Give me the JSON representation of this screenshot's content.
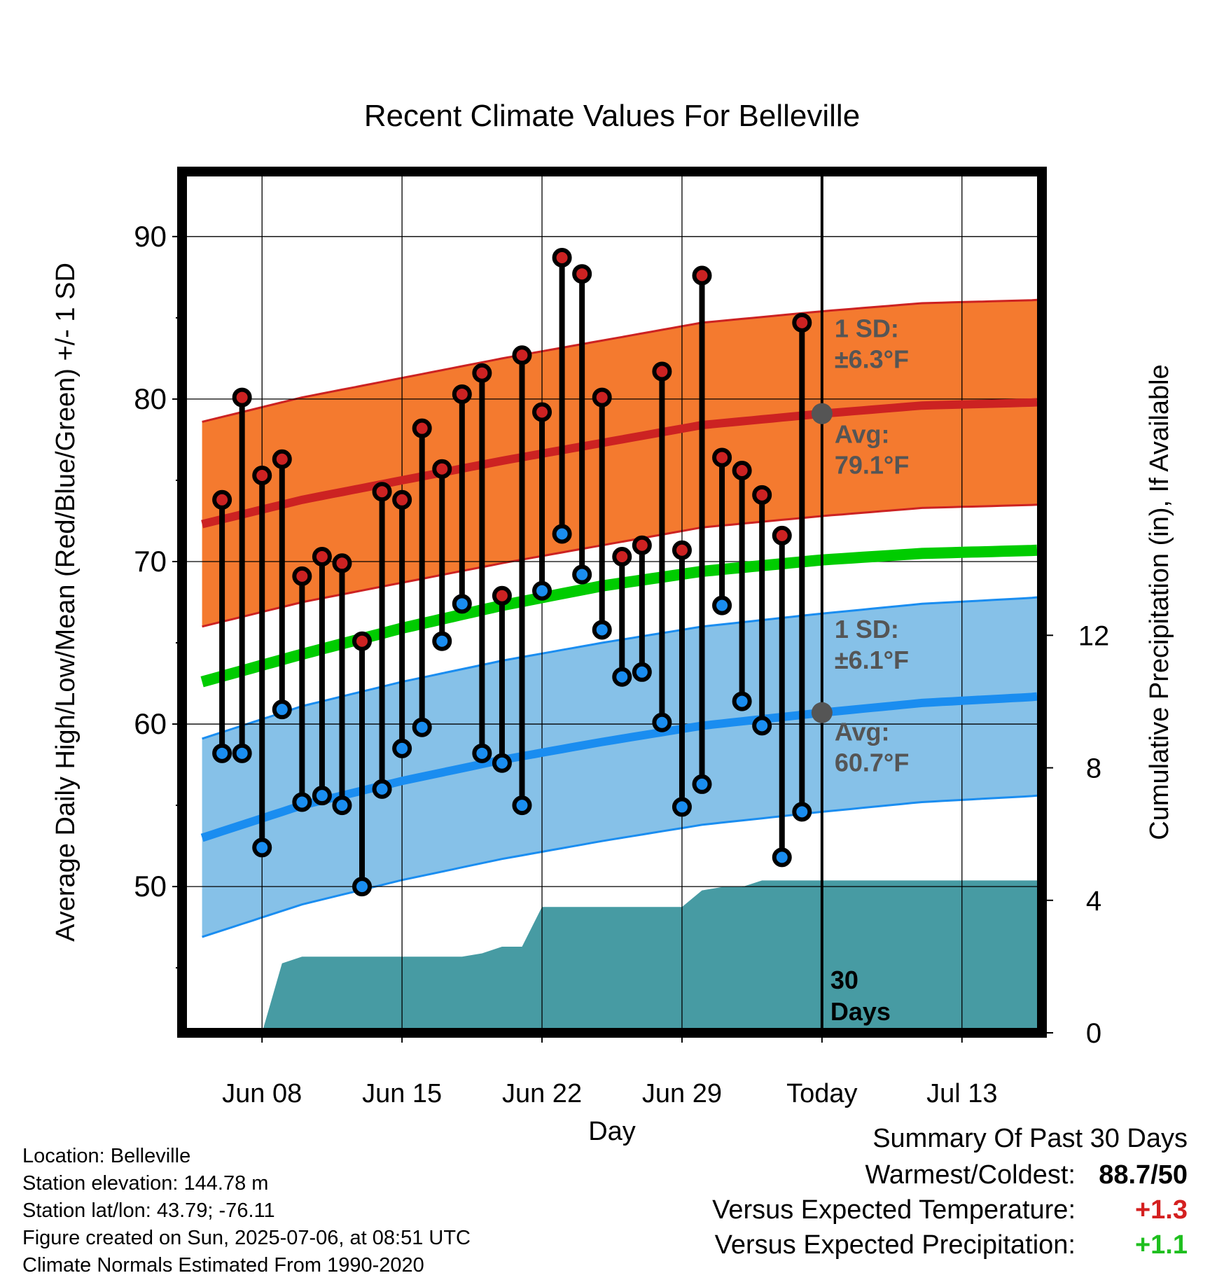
{
  "chart_data": {
    "type": "line",
    "title": "Recent Climate Values For Belleville",
    "xlabel": "Day",
    "ylabel": "Average Daily High/Low/Mean (Red/Blue/Green) +/- 1 SD",
    "y2label": "Cumulative Precipitation (in), If Available",
    "xlim": [
      "2025-06-04",
      "2025-07-17"
    ],
    "ylim": [
      41,
      94
    ],
    "y2lim": [
      0,
      26
    ],
    "x_ticks": [
      {
        "date": "2025-06-08",
        "label": "Jun 08"
      },
      {
        "date": "2025-06-15",
        "label": "Jun 15"
      },
      {
        "date": "2025-06-22",
        "label": "Jun 22"
      },
      {
        "date": "2025-06-29",
        "label": "Jun 29"
      },
      {
        "date": "2025-07-06",
        "label": "Today"
      },
      {
        "date": "2025-07-13",
        "label": "Jul 13"
      }
    ],
    "y_ticks": [
      "50",
      "60",
      "70",
      "80",
      "90"
    ],
    "y2_ticks": [
      "0",
      "4",
      "8",
      "12"
    ],
    "grid": true,
    "today": "2025-07-06",
    "today_label": "30 Days",
    "colors": {
      "high_band": "#f47a2f",
      "high_line": "#cc2222",
      "low_band": "#86c1e8",
      "low_line": "#1a8df0",
      "mean_line": "#00cc00",
      "precip": "#479ba3",
      "high_dot": "#cc2222",
      "low_dot": "#1a8df0",
      "annotation": "#555555"
    },
    "normals": {
      "dates": [
        "2025-06-05",
        "2025-06-10",
        "2025-06-15",
        "2025-06-20",
        "2025-06-25",
        "2025-06-30",
        "2025-07-06",
        "2025-07-11",
        "2025-07-17"
      ],
      "high_avg": [
        72.3,
        73.8,
        75.0,
        76.2,
        77.3,
        78.4,
        79.1,
        79.6,
        79.8
      ],
      "high_sd": 6.3,
      "low_avg": [
        53.0,
        55.0,
        56.5,
        57.8,
        58.9,
        59.9,
        60.7,
        61.3,
        61.7
      ],
      "low_sd": 6.1,
      "mean_avg": [
        62.6,
        64.3,
        65.9,
        67.3,
        68.5,
        69.4,
        70.1,
        70.5,
        70.7
      ]
    },
    "annotations": [
      {
        "name": "high-sd",
        "lines": [
          "1 SD:",
          "±6.3°F"
        ],
        "y": 83.8
      },
      {
        "name": "high-avg",
        "lines": [
          "Avg:",
          "79.1°F"
        ],
        "y": 77.3
      },
      {
        "name": "low-sd",
        "lines": [
          "1 SD:",
          "±6.1°F"
        ],
        "y": 65.3
      },
      {
        "name": "low-avg",
        "lines": [
          "Avg:",
          "60.7°F"
        ],
        "y": 59.0
      }
    ],
    "series": [
      {
        "name": "High",
        "dates": [
          "2025-06-06",
          "2025-06-07",
          "2025-06-08",
          "2025-06-09",
          "2025-06-10",
          "2025-06-11",
          "2025-06-12",
          "2025-06-13",
          "2025-06-14",
          "2025-06-15",
          "2025-06-16",
          "2025-06-17",
          "2025-06-18",
          "2025-06-19",
          "2025-06-20",
          "2025-06-21",
          "2025-06-22",
          "2025-06-23",
          "2025-06-24",
          "2025-06-25",
          "2025-06-26",
          "2025-06-27",
          "2025-06-28",
          "2025-06-29",
          "2025-06-30",
          "2025-07-01",
          "2025-07-02",
          "2025-07-03",
          "2025-07-04",
          "2025-07-05"
        ],
        "values": [
          73.8,
          80.1,
          75.3,
          76.3,
          69.1,
          70.3,
          69.9,
          65.1,
          74.3,
          73.8,
          78.2,
          75.7,
          80.3,
          81.6,
          67.9,
          82.7,
          79.2,
          88.7,
          87.7,
          80.1,
          70.3,
          71.0,
          81.7,
          70.7,
          87.6,
          76.4,
          75.6,
          74.1,
          71.6,
          84.7
        ]
      },
      {
        "name": "Low",
        "dates": [
          "2025-06-06",
          "2025-06-07",
          "2025-06-08",
          "2025-06-09",
          "2025-06-10",
          "2025-06-11",
          "2025-06-12",
          "2025-06-13",
          "2025-06-14",
          "2025-06-15",
          "2025-06-16",
          "2025-06-17",
          "2025-06-18",
          "2025-06-19",
          "2025-06-20",
          "2025-06-21",
          "2025-06-22",
          "2025-06-23",
          "2025-06-24",
          "2025-06-25",
          "2025-06-26",
          "2025-06-27",
          "2025-06-28",
          "2025-06-29",
          "2025-06-30",
          "2025-07-01",
          "2025-07-02",
          "2025-07-03",
          "2025-07-04",
          "2025-07-05"
        ],
        "values": [
          58.2,
          58.2,
          52.4,
          60.9,
          55.2,
          55.6,
          55.0,
          50.0,
          56.0,
          58.5,
          59.8,
          65.1,
          67.4,
          58.2,
          57.6,
          55.0,
          68.2,
          71.7,
          69.2,
          65.8,
          62.9,
          63.2,
          60.1,
          54.9,
          56.3,
          67.3,
          61.4,
          59.9,
          51.8,
          54.6
        ]
      },
      {
        "name": "Cumulative Precipitation",
        "axis": "y2",
        "dates": [
          "2025-06-08",
          "2025-06-09",
          "2025-06-10",
          "2025-06-11",
          "2025-06-17",
          "2025-06-18",
          "2025-06-19",
          "2025-06-20",
          "2025-06-21",
          "2025-06-22",
          "2025-06-25",
          "2025-06-26",
          "2025-06-29",
          "2025-06-30",
          "2025-07-01",
          "2025-07-02",
          "2025-07-03",
          "2025-07-06",
          "2025-07-17"
        ],
        "values": [
          0.0,
          2.1,
          2.3,
          2.3,
          2.3,
          2.3,
          2.4,
          2.6,
          2.6,
          3.8,
          3.8,
          3.8,
          3.8,
          4.3,
          4.4,
          4.4,
          4.6,
          4.6,
          4.6
        ]
      }
    ]
  },
  "footer": {
    "location": "Location: Belleville",
    "elevation": "Station elevation: 144.78 m",
    "latlon": "Station lat/lon: 43.79; -76.11",
    "created": "Figure created on Sun, 2025-07-06, at 08:51 UTC",
    "normals": "Climate Normals Estimated From 1990-2020"
  },
  "summary": {
    "title": "Summary Of Past 30 Days",
    "rows": [
      {
        "label": "Warmest/Coldest:",
        "value": "88.7/50",
        "color": "#000000"
      },
      {
        "label": "Versus Expected Temperature:",
        "value": "+1.3",
        "color": "#d42020"
      },
      {
        "label": "Versus Expected Precipitation:",
        "value": "+1.1",
        "color": "#1fbf1f"
      }
    ]
  }
}
